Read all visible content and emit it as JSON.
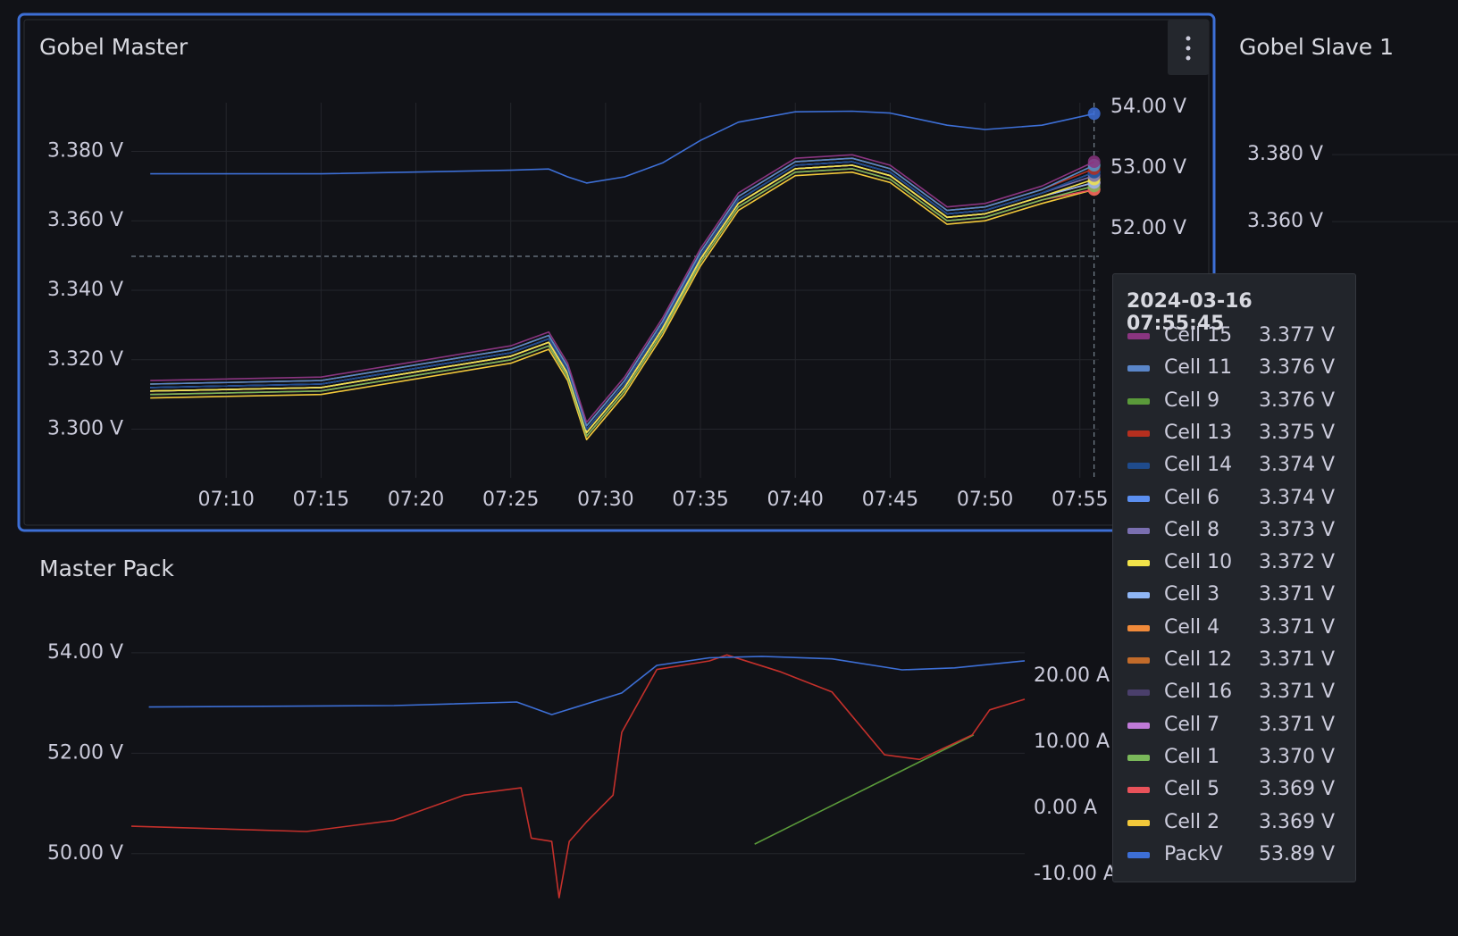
{
  "chart_data": [
    {
      "type": "line",
      "title": "Gobel Master",
      "x": [
        "07:06",
        "07:15",
        "07:25",
        "07:27",
        "07:28",
        "07:29",
        "07:31",
        "07:33",
        "07:35",
        "07:37",
        "07:40",
        "07:43",
        "07:45",
        "07:48",
        "07:50",
        "07:53",
        "07:55:45"
      ],
      "xlim": [
        "07:05",
        "07:56"
      ],
      "xticks": [
        "07:10",
        "07:15",
        "07:20",
        "07:25",
        "07:30",
        "07:35",
        "07:40",
        "07:45",
        "07:50",
        "07:55"
      ],
      "ylim": [
        3.286,
        3.394
      ],
      "yticks": [
        {
          "value": 3.3,
          "label": "3.300 V"
        },
        {
          "value": 3.32,
          "label": "3.320 V"
        },
        {
          "value": 3.34,
          "label": "3.340 V"
        },
        {
          "value": 3.36,
          "label": "3.360 V"
        },
        {
          "value": 3.38,
          "label": "3.380 V"
        }
      ],
      "y2lim": [
        47.9,
        54.07
      ],
      "y2ticks": [
        {
          "value": 52,
          "label": "52.00 V"
        },
        {
          "value": 53,
          "label": "53.00 V"
        },
        {
          "value": 54,
          "label": "54.00 V"
        }
      ],
      "grid": true,
      "series": [
        {
          "name": "Cell 15",
          "color": "#8a3580",
          "values": [
            3.314,
            3.315,
            3.324,
            3.328,
            3.319,
            3.302,
            3.315,
            3.332,
            3.352,
            3.368,
            3.378,
            3.379,
            3.376,
            3.364,
            3.365,
            3.37,
            3.377
          ]
        },
        {
          "name": "Cell 11",
          "color": "#5a86c9",
          "values": [
            3.313,
            3.314,
            3.323,
            3.327,
            3.318,
            3.301,
            3.314,
            3.331,
            3.351,
            3.367,
            3.377,
            3.378,
            3.375,
            3.363,
            3.364,
            3.369,
            3.376
          ]
        },
        {
          "name": "Cell 9",
          "color": "#5a9a3a",
          "values": [
            3.313,
            3.314,
            3.323,
            3.327,
            3.318,
            3.301,
            3.314,
            3.331,
            3.351,
            3.367,
            3.377,
            3.378,
            3.375,
            3.363,
            3.364,
            3.369,
            3.376
          ]
        },
        {
          "name": "Cell 13",
          "color": "#b52f1f",
          "values": [
            3.313,
            3.314,
            3.323,
            3.327,
            3.318,
            3.301,
            3.314,
            3.331,
            3.351,
            3.367,
            3.377,
            3.378,
            3.375,
            3.363,
            3.364,
            3.369,
            3.375
          ]
        },
        {
          "name": "Cell 14",
          "color": "#1f4b8c",
          "values": [
            3.312,
            3.313,
            3.322,
            3.326,
            3.317,
            3.3,
            3.313,
            3.33,
            3.35,
            3.366,
            3.376,
            3.377,
            3.374,
            3.362,
            3.363,
            3.368,
            3.374
          ]
        },
        {
          "name": "Cell 6",
          "color": "#5b8ff0",
          "values": [
            3.312,
            3.313,
            3.322,
            3.326,
            3.317,
            3.3,
            3.313,
            3.33,
            3.35,
            3.366,
            3.376,
            3.377,
            3.374,
            3.362,
            3.363,
            3.368,
            3.374
          ]
        },
        {
          "name": "Cell 8",
          "color": "#7a6fb0",
          "values": [
            3.312,
            3.313,
            3.322,
            3.326,
            3.317,
            3.3,
            3.313,
            3.33,
            3.35,
            3.366,
            3.376,
            3.377,
            3.374,
            3.362,
            3.363,
            3.368,
            3.373
          ]
        },
        {
          "name": "Cell 10",
          "color": "#f2e34a",
          "values": [
            3.311,
            3.312,
            3.321,
            3.325,
            3.316,
            3.299,
            3.312,
            3.329,
            3.349,
            3.365,
            3.375,
            3.376,
            3.373,
            3.361,
            3.362,
            3.367,
            3.372
          ]
        },
        {
          "name": "Cell 3",
          "color": "#8fb6f5",
          "values": [
            3.311,
            3.312,
            3.321,
            3.325,
            3.316,
            3.299,
            3.312,
            3.329,
            3.349,
            3.365,
            3.375,
            3.376,
            3.373,
            3.361,
            3.362,
            3.367,
            3.371
          ]
        },
        {
          "name": "Cell 4",
          "color": "#f08a3a",
          "values": [
            3.311,
            3.312,
            3.321,
            3.325,
            3.316,
            3.299,
            3.312,
            3.329,
            3.349,
            3.365,
            3.375,
            3.376,
            3.373,
            3.361,
            3.362,
            3.367,
            3.371
          ]
        },
        {
          "name": "Cell 12",
          "color": "#c26b2a",
          "values": [
            3.311,
            3.312,
            3.321,
            3.325,
            3.316,
            3.299,
            3.312,
            3.329,
            3.349,
            3.365,
            3.375,
            3.376,
            3.373,
            3.361,
            3.362,
            3.367,
            3.371
          ]
        },
        {
          "name": "Cell 16",
          "color": "#4a3f6b",
          "values": [
            3.311,
            3.312,
            3.321,
            3.325,
            3.316,
            3.299,
            3.312,
            3.329,
            3.349,
            3.365,
            3.375,
            3.376,
            3.373,
            3.361,
            3.362,
            3.367,
            3.371
          ]
        },
        {
          "name": "Cell 7",
          "color": "#c07ad8",
          "values": [
            3.311,
            3.312,
            3.321,
            3.325,
            3.316,
            3.299,
            3.312,
            3.329,
            3.349,
            3.365,
            3.375,
            3.376,
            3.373,
            3.361,
            3.362,
            3.367,
            3.371
          ]
        },
        {
          "name": "Cell 1",
          "color": "#7ab85a",
          "values": [
            3.31,
            3.311,
            3.32,
            3.324,
            3.315,
            3.298,
            3.311,
            3.328,
            3.348,
            3.364,
            3.374,
            3.375,
            3.372,
            3.36,
            3.361,
            3.366,
            3.37
          ]
        },
        {
          "name": "Cell 5",
          "color": "#e8525a",
          "values": [
            3.31,
            3.311,
            3.32,
            3.324,
            3.315,
            3.298,
            3.311,
            3.328,
            3.348,
            3.364,
            3.374,
            3.375,
            3.372,
            3.36,
            3.361,
            3.366,
            3.369
          ]
        },
        {
          "name": "Cell 2",
          "color": "#f2c83a",
          "values": [
            3.309,
            3.31,
            3.319,
            3.323,
            3.314,
            3.297,
            3.31,
            3.327,
            3.347,
            3.363,
            3.373,
            3.374,
            3.371,
            3.359,
            3.36,
            3.365,
            3.369
          ]
        },
        {
          "name": "PackV",
          "color": "#3d6fd6",
          "axis": "y2",
          "values": [
            52.9,
            52.9,
            52.96,
            52.98,
            52.85,
            52.75,
            52.85,
            53.08,
            53.45,
            53.75,
            53.92,
            53.93,
            53.9,
            53.7,
            53.63,
            53.7,
            53.89
          ]
        }
      ],
      "tooltip": {
        "title": "2024-03-16 07:55:45",
        "value_labels": [
          "3.377 V",
          "3.376 V",
          "3.376 V",
          "3.375 V",
          "3.374 V",
          "3.374 V",
          "3.373 V",
          "3.372 V",
          "3.371 V",
          "3.371 V",
          "3.371 V",
          "3.371 V",
          "3.371 V",
          "3.370 V",
          "3.369 V",
          "3.369 V",
          "53.89 V"
        ]
      }
    },
    {
      "type": "line",
      "title": "Master Pack",
      "xlim": [
        "07:05",
        "07:56"
      ],
      "ylim": [
        48.36,
        54.55
      ],
      "yticks": [
        {
          "value": 50,
          "label": "50.00 V"
        },
        {
          "value": 52,
          "label": "52.00 V"
        },
        {
          "value": 54,
          "label": "54.00 V"
        }
      ],
      "y2lim": [
        -19.3,
        27.7
      ],
      "y2ticks": [
        {
          "value": -10,
          "label": "-10.00 A"
        },
        {
          "value": 0,
          "label": "0.00 A"
        },
        {
          "value": 10,
          "label": "10.00 A"
        },
        {
          "value": 20,
          "label": "20.00 A"
        }
      ],
      "grid": true,
      "series": [
        {
          "color": "#3d6fd6",
          "x": [
            "07:06",
            "07:20",
            "07:27",
            "07:29",
            "07:33",
            "07:35",
            "07:38",
            "07:41",
            "07:45",
            "07:49",
            "07:52",
            "07:56"
          ],
          "values": [
            52.92,
            52.95,
            53.02,
            52.77,
            53.2,
            53.75,
            53.9,
            53.93,
            53.88,
            53.66,
            53.7,
            53.84
          ]
        },
        {
          "color": "#c4302b",
          "axis": "y2",
          "x": [
            "07:05",
            "07:15",
            "07:20",
            "07:24",
            "07:27:15",
            "07:27:50",
            "07:29",
            "07:29:25",
            "07:30",
            "07:31",
            "07:32:30",
            "07:33",
            "07:35",
            "07:38",
            "07:39",
            "07:42",
            "07:45",
            "07:48",
            "07:50",
            "07:53",
            "07:54",
            "07:56"
          ],
          "values": [
            -2.7,
            -3.5,
            -1.8,
            2.0,
            3.1,
            -4.5,
            -5,
            -13.5,
            -5,
            -2,
            2,
            11.5,
            21,
            22.3,
            23.2,
            20.7,
            17.6,
            8.1,
            7.4,
            11.1,
            14.9,
            16.5
          ]
        },
        {
          "color": "#5a9a3a",
          "axis": "y2",
          "x": [
            "07:40:35",
            "07:53:05"
          ],
          "values": [
            -5.4,
            11.1
          ]
        }
      ]
    },
    {
      "type": "line",
      "title": "Gobel Slave 1",
      "ylim": [
        3.2835,
        3.3955
      ],
      "yticks": [
        {
          "value": 3.36,
          "label": "3.360 V"
        },
        {
          "value": 3.38,
          "label": "3.380 V"
        }
      ],
      "grid": true
    }
  ]
}
